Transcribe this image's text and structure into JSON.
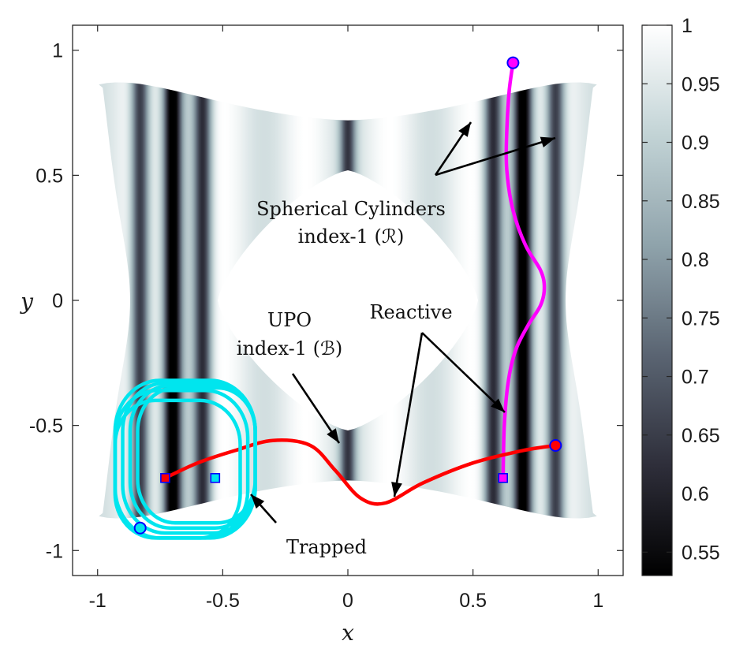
{
  "chart_data": {
    "type": "heatmap",
    "xlabel": "x",
    "ylabel": "y",
    "xlim": [
      -1.1,
      1.1
    ],
    "ylim": [
      -1.1,
      1.1
    ],
    "xticks": [
      "-1",
      "-0.5",
      "0",
      "0.5",
      "1"
    ],
    "yticks": [
      "1",
      "0.5",
      "0",
      "-0.5",
      "-1"
    ],
    "xtick_values": [
      -1,
      -0.5,
      0,
      0.5,
      1
    ],
    "ytick_values": [
      1,
      0.5,
      0,
      -0.5,
      -1
    ],
    "colorbar": {
      "range": [
        0.53,
        1.0
      ],
      "ticks": [
        "1",
        "0.95",
        "0.9",
        "0.85",
        "0.8",
        "0.75",
        "0.7",
        "0.65",
        "0.6",
        "0.55"
      ],
      "tick_values": [
        1,
        0.95,
        0.9,
        0.85,
        0.8,
        0.75,
        0.7,
        0.65,
        0.6,
        0.55
      ],
      "colors": [
        "#000000",
        "#2e2e3a",
        "#5a6472",
        "#8fa3ab",
        "#c2d3d5",
        "#ffffff"
      ]
    },
    "dark_bands_x": [
      -0.83,
      -0.7,
      -0.58,
      0.0,
      0.58,
      0.7,
      0.83
    ],
    "annotations": {
      "cylinders_line1": "Spherical Cylinders",
      "cylinders_line2": "index-1 (ℛ)",
      "upo_line1": "UPO",
      "upo_line2": "index-1 (ℬ)",
      "reactive": "Reactive",
      "trapped": "Trapped"
    },
    "series": [
      {
        "color": "#ff00ff",
        "x": [
          0.62,
          0.625,
          0.64,
          0.67,
          0.72,
          0.77,
          0.785,
          0.77,
          0.71,
          0.66,
          0.635,
          0.635,
          0.645,
          0.66
        ],
        "y": [
          -0.71,
          -0.5,
          -0.33,
          -0.2,
          -0.1,
          -0.02,
          0.05,
          0.12,
          0.22,
          0.36,
          0.52,
          0.68,
          0.84,
          0.95
        ]
      },
      {
        "color": "#ff0000",
        "x": [
          -0.73,
          -0.6,
          -0.45,
          -0.3,
          -0.15,
          -0.05,
          0.05,
          0.15,
          0.3,
          0.5,
          0.7,
          0.83
        ],
        "y": [
          -0.71,
          -0.65,
          -0.6,
          -0.56,
          -0.58,
          -0.68,
          -0.79,
          -0.81,
          -0.73,
          -0.65,
          -0.6,
          -0.58
        ]
      },
      {
        "color": "#00e5ee",
        "type": "loops",
        "loops": [
          {
            "xmin": -0.93,
            "xmax": -0.37,
            "ymin": -0.95,
            "ymax": -0.32
          },
          {
            "xmin": -0.9,
            "xmax": -0.37,
            "ymin": -0.93,
            "ymax": -0.33
          },
          {
            "xmin": -0.87,
            "xmax": -0.37,
            "ymin": -0.91,
            "ymax": -0.34
          },
          {
            "xmin": -0.84,
            "xmax": -0.37,
            "ymin": -0.89,
            "ymax": -0.35
          },
          {
            "xmin": -0.93,
            "xmax": -0.4,
            "ymin": -0.95,
            "ymax": -0.36
          },
          {
            "xmin": -0.93,
            "xmax": -0.43,
            "ymin": -0.95,
            "ymax": -0.4
          }
        ]
      }
    ],
    "markers": [
      {
        "shape": "circle",
        "x": 0.66,
        "y": 0.95,
        "fill": "#ff00ff",
        "stroke": "#0000ff"
      },
      {
        "shape": "circle",
        "x": 0.83,
        "y": -0.58,
        "fill": "#ff0000",
        "stroke": "#0000ff"
      },
      {
        "shape": "circle",
        "x": -0.83,
        "y": -0.91,
        "fill": "#00e5ee",
        "stroke": "#0000ff"
      },
      {
        "shape": "square",
        "x": 0.62,
        "y": -0.71,
        "fill": "#ff00ff",
        "stroke": "#0000ff"
      },
      {
        "shape": "square",
        "x": -0.73,
        "y": -0.71,
        "fill": "#ff0000",
        "stroke": "#0000ff"
      },
      {
        "shape": "square",
        "x": -0.53,
        "y": -0.71,
        "fill": "#00e5ee",
        "stroke": "#0000ff"
      }
    ]
  }
}
